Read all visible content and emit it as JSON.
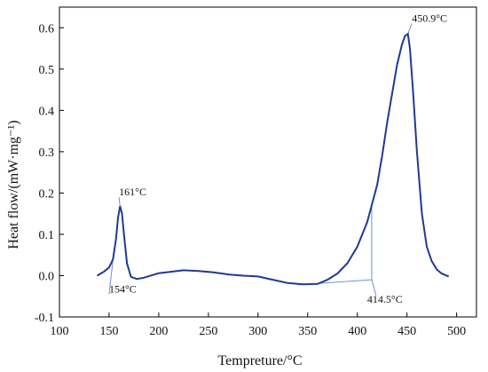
{
  "chart_data": {
    "type": "line",
    "title": "",
    "xlabel": "Tempreture/°C",
    "ylabel": "Heat flow/(mW·mg⁻¹)",
    "xlim": [
      100,
      520
    ],
    "ylim": [
      -0.1,
      0.65
    ],
    "xticks": [
      100,
      150,
      200,
      250,
      300,
      350,
      400,
      450,
      500
    ],
    "yticks": [
      -0.1,
      0.0,
      0.1,
      0.2,
      0.3,
      0.4,
      0.5,
      0.6
    ],
    "ytick_labels": [
      "-0.1",
      "0.0",
      "0.1",
      "0.2",
      "0.3",
      "0.4",
      "0.5",
      "0.6"
    ],
    "grid": false,
    "line_color": "#1f3a93",
    "annotation_line_color": "#6f8fcf",
    "series": [
      {
        "x": [
          138,
          145,
          150,
          154,
          157,
          159,
          161,
          163,
          165,
          168,
          172,
          178,
          185,
          200,
          215,
          225,
          240,
          255,
          270,
          285,
          300,
          315,
          330,
          345,
          360,
          370,
          380,
          390,
          400,
          410,
          414.5,
          420,
          425,
          430,
          435,
          440,
          445,
          448,
          450.9,
          453,
          456,
          460,
          465,
          470,
          475,
          480,
          485,
          492
        ],
        "y": [
          0.0,
          0.01,
          0.02,
          0.04,
          0.09,
          0.14,
          0.168,
          0.15,
          0.1,
          0.03,
          -0.003,
          -0.008,
          -0.005,
          0.006,
          0.01,
          0.013,
          0.011,
          0.008,
          0.003,
          0.0,
          -0.002,
          -0.01,
          -0.018,
          -0.021,
          -0.02,
          -0.01,
          0.005,
          0.03,
          0.07,
          0.13,
          0.17,
          0.22,
          0.29,
          0.37,
          0.44,
          0.51,
          0.56,
          0.58,
          0.585,
          0.55,
          0.45,
          0.3,
          0.15,
          0.07,
          0.035,
          0.015,
          0.005,
          -0.002
        ]
      }
    ],
    "annotations": [
      {
        "text": "161°C",
        "x": 161,
        "y": 0.168,
        "label_x": 160,
        "label_y": 0.19
      },
      {
        "text": "154°C",
        "x": 154,
        "y": 0.04,
        "label_x": 150,
        "label_y": -0.045
      },
      {
        "text": "414.5°C",
        "x": 414.5,
        "y": 0.17,
        "anchor_x": 414.5,
        "anchor_y": -0.01,
        "label_x": 410,
        "label_y": -0.07
      },
      {
        "text": "450.9°C",
        "x": 450.9,
        "y": 0.585,
        "label_x": 455,
        "label_y": 0.61
      }
    ]
  }
}
